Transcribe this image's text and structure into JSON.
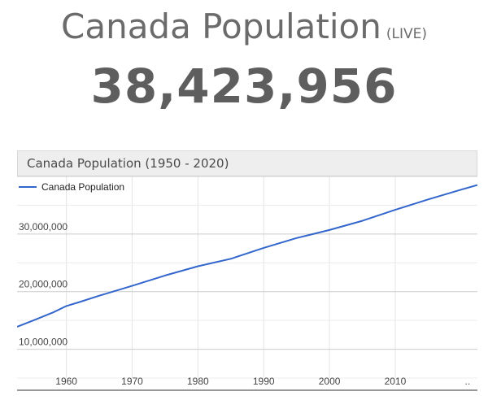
{
  "header": {
    "title": "Canada Population",
    "live_tag": "(LIVE)",
    "counter": "38,423,956"
  },
  "colors": {
    "series_line": "#3366cc",
    "grid": "#cccccc",
    "header_bg": "#eeeeee"
  },
  "chart_data": {
    "type": "line",
    "title": "Canada Population (1950 - 2020)",
    "xlabel": "",
    "ylabel": "",
    "xlim": [
      1952.5,
      2022.5
    ],
    "ylim": [
      5000000,
      40000000
    ],
    "x_ticks": [
      "1960",
      "1970",
      "1980",
      "1990",
      "2000",
      "2010",
      ".."
    ],
    "x_tick_values": [
      1960,
      1970,
      1980,
      1990,
      2000,
      2010,
      2021
    ],
    "y_ticks": [
      "10,000,000",
      "20,000,000",
      "30,000,000"
    ],
    "y_tick_values": [
      10000000,
      20000000,
      30000000
    ],
    "legend": "top-left",
    "series": [
      {
        "name": "Canada Population",
        "x": [
          1952.5,
          1955,
          1958,
          1960,
          1962,
          1965,
          1970,
          1975,
          1980,
          1985,
          1990,
          1995,
          2000,
          2005,
          2010,
          2015,
          2020,
          2022.5
        ],
        "y": [
          13900000,
          15000000,
          16400000,
          17500000,
          18200000,
          19300000,
          21000000,
          22800000,
          24400000,
          25700000,
          27600000,
          29300000,
          30700000,
          32300000,
          34200000,
          36000000,
          37700000,
          38500000
        ]
      }
    ]
  }
}
